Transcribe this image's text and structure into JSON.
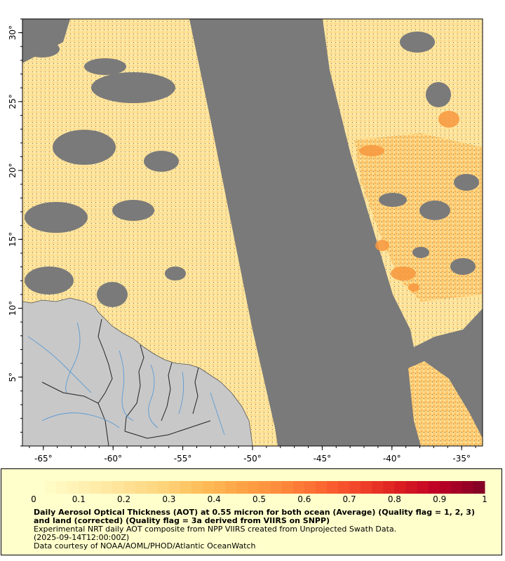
{
  "map": {
    "x_axis": {
      "min": -66.5,
      "max": -33.5,
      "ticks": [
        -65,
        -60,
        -55,
        -50,
        -45,
        -40,
        -35
      ],
      "tick_labels": [
        "-65°",
        "-60°",
        "-55°",
        "-50°",
        "-45°",
        "-40°",
        "-35°"
      ]
    },
    "y_axis": {
      "min": 0,
      "max": 31,
      "ticks": [
        5,
        10,
        15,
        20,
        25,
        30
      ],
      "tick_labels": [
        "5°",
        "10°",
        "15°",
        "20°",
        "25°",
        "30°"
      ]
    },
    "colors": {
      "no_data": "#7a7a7a",
      "land": "#c8c8c8",
      "rivers": "#5b9bd5",
      "borders": "#222222"
    }
  },
  "legend": {
    "min": 0,
    "max": 1,
    "tick_labels": [
      "0",
      "0.1",
      "0.2",
      "0.3",
      "0.4",
      "0.5",
      "0.6",
      "0.7",
      "0.8",
      "0.9",
      "1"
    ],
    "colors": [
      "#ffffcc",
      "#fff1b3",
      "#ffe49a",
      "#fed67f",
      "#febf5a",
      "#fea546",
      "#fd8c3c",
      "#fc6a31",
      "#f2442a",
      "#dc1e21",
      "#bd0026",
      "#870026"
    ]
  },
  "caption": {
    "title": "Daily Aerosol Optical Thickness (AOT) at 0.55 micron for both ocean (Average) (Quality flag = 1, 2, 3) and land (corrected) (Quality flag = 3a derived from VIIRS on SNPP)",
    "line2": "Experimental NRT daily AOT composite from NPP VIIRS created from Unprojected Swath Data.",
    "line3": "(2025-09-14T12:00:00Z)",
    "line4": "Data courtesy of NOAA/AOML/PHOD/Atlantic OceanWatch"
  }
}
